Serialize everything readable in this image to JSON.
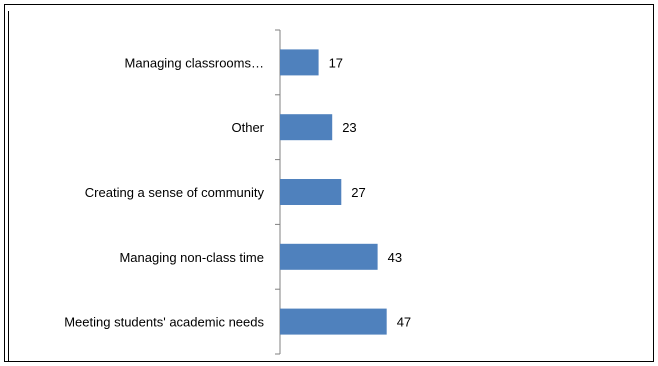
{
  "chart_data": {
    "type": "bar",
    "orientation": "horizontal",
    "categories": [
      "Managing classrooms…",
      "Other",
      "Creating a sense of community",
      "Managing non-class time",
      "Meeting students' academic needs"
    ],
    "values": [
      17,
      23,
      27,
      43,
      47
    ],
    "title": "",
    "xlabel": "",
    "ylabel": "",
    "bar_color": "#4F81BD",
    "data_labels": true,
    "grid": false,
    "legend": "none"
  }
}
